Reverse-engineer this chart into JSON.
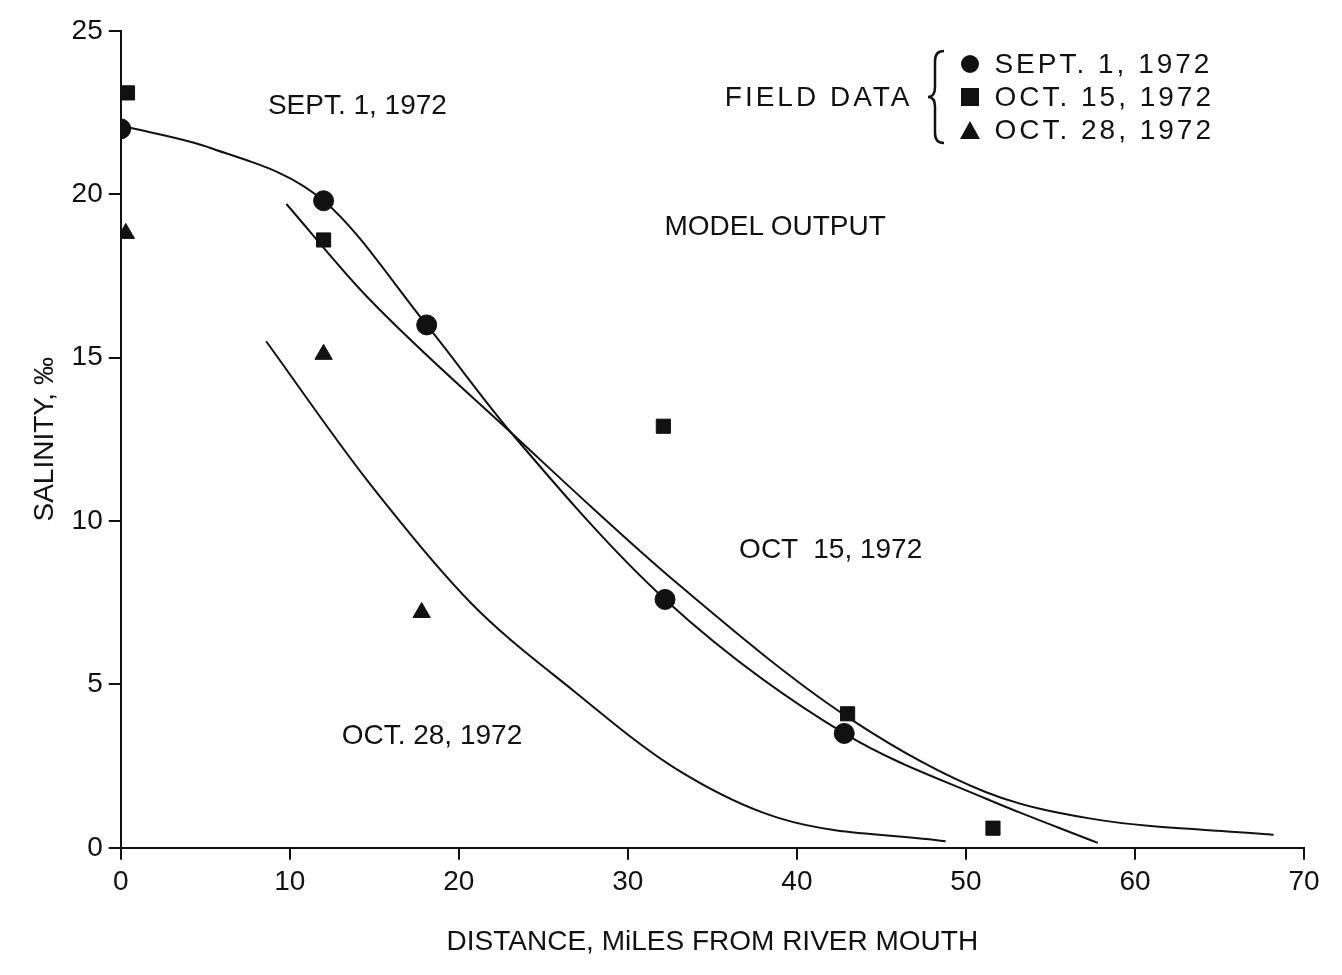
{
  "chart_data": {
    "type": "scatter",
    "xlabel": "DISTANCE, MiLES FROM RIVER MOUTH",
    "ylabel": "SALINITY, ‰",
    "legend_title": "FIELD DATA",
    "legend": "top right",
    "grid": false,
    "xlim": [
      0,
      70
    ],
    "xticks": [
      0,
      10,
      20,
      30,
      40,
      50,
      60,
      70
    ],
    "ylim": [
      0,
      25
    ],
    "yticks": [
      0,
      5,
      10,
      15,
      20,
      25
    ],
    "annotations": [
      "MODEL OUTPUT",
      "SEPT. 1, 1972",
      "OCT  15, 1972",
      "OCT. 28, 1972"
    ],
    "series": [
      {
        "name": "SEPT. 1, 1972",
        "type": "scatter",
        "marker": "circle",
        "color": "#111111",
        "x": [
          0,
          12,
          18.1,
          32.2,
          42.8
        ],
        "values": [
          22.0,
          19.8,
          16.0,
          7.6,
          3.5
        ]
      },
      {
        "name": "OCT. 15, 1972",
        "type": "scatter",
        "marker": "square",
        "color": "#111111",
        "x": [
          0.4,
          12,
          32.1,
          43,
          51.6
        ],
        "values": [
          23.1,
          18.6,
          12.9,
          4.1,
          0.6
        ]
      },
      {
        "name": "OCT. 28, 1972",
        "type": "scatter",
        "marker": "triangle",
        "color": "#111111",
        "x": [
          0.3,
          12,
          17.8
        ],
        "values": [
          18.8,
          15.1,
          7.2
        ]
      },
      {
        "type": "line",
        "marker": "none",
        "color": "#111111",
        "x": [
          0,
          5.4,
          12,
          18.1,
          23.1,
          32.2,
          42.8,
          51.2,
          57.8
        ],
        "values": [
          22.1,
          21.4,
          19.8,
          16.0,
          12.7,
          7.6,
          3.5,
          1.5,
          0.15
        ]
      },
      {
        "type": "line",
        "marker": "none",
        "color": "#111111",
        "x": [
          9.8,
          14.5,
          23.1,
          32.9,
          43,
          51.2,
          57.3,
          68.2
        ],
        "values": [
          19.7,
          16.9,
          12.7,
          8.1,
          4.0,
          1.7,
          0.9,
          0.4
        ]
      },
      {
        "type": "line",
        "marker": "none",
        "color": "#111111",
        "x": [
          8.6,
          14.5,
          20.7,
          26.8,
          32.9,
          39,
          48.8
        ],
        "values": [
          15.5,
          11.3,
          7.5,
          4.8,
          2.4,
          0.9,
          0.2
        ]
      }
    ]
  }
}
